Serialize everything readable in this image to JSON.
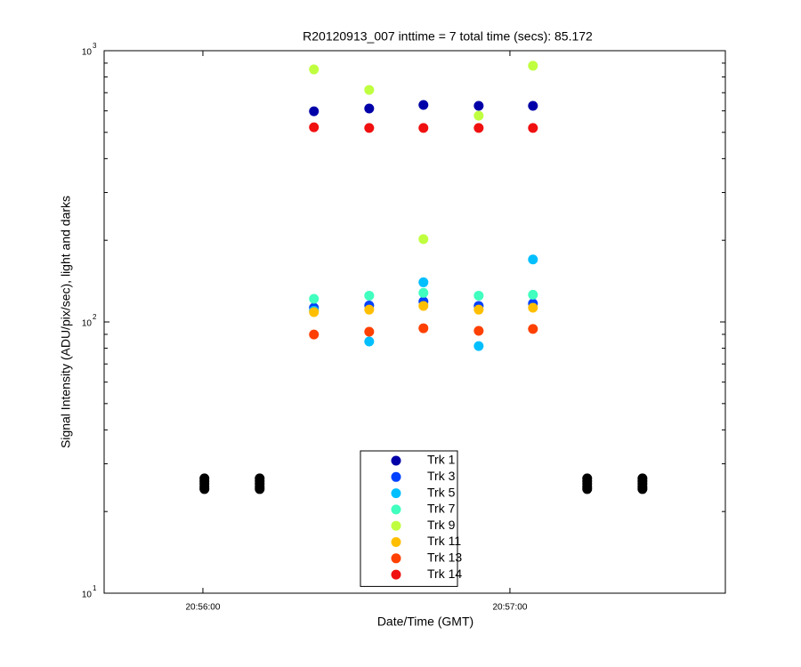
{
  "chart_data": {
    "type": "scatter",
    "title": "R20120913_007 inttime = 7 total time (secs): 85.172",
    "x_label": "Date/Time (GMT)",
    "y_label": "Signal Intensity (ADU/pix/sec), light and darks",
    "log_y": true,
    "xlim": [
      "20:55:40.7",
      "20:57:42.1"
    ],
    "xticks": [
      "20:56:00",
      "20:57:00"
    ],
    "ylim": [
      10,
      1000
    ],
    "yticks": [
      {
        "value": 10,
        "label": "10",
        "exponent": "1"
      },
      {
        "value": 100,
        "label": "10",
        "exponent": "2"
      },
      {
        "value": 1000,
        "label": "10",
        "exponent": "3"
      }
    ],
    "legend_position": "bottom",
    "series": [
      {
        "name": "Trk 1",
        "color": "#0000a8",
        "x": [
          "20:56:21.7",
          "20:56:32.5",
          "20:56:43.1",
          "20:56:53.9",
          "20:57:04.5"
        ],
        "values": [
          598,
          612,
          631,
          626,
          626
        ]
      },
      {
        "name": "Trk 3",
        "color": "#0040ff",
        "x": [
          "20:56:21.7",
          "20:56:32.5",
          "20:56:43.1",
          "20:56:53.9",
          "20:57:04.5"
        ],
        "values": [
          112.8,
          115,
          119,
          114.6,
          117
        ]
      },
      {
        "name": "Trk 5",
        "color": "#00bfff",
        "x": [
          "20:56:21.7",
          "20:56:32.5",
          "20:56:43.1",
          "20:56:53.9",
          "20:57:04.5"
        ],
        "values": [
          110,
          84.7,
          140,
          81.5,
          170
        ]
      },
      {
        "name": "Trk 7",
        "color": "#40ffbf",
        "x": [
          "20:56:21.7",
          "20:56:32.5",
          "20:56:43.1",
          "20:56:53.9",
          "20:57:04.5"
        ],
        "values": [
          121.7,
          125,
          128,
          125,
          126
        ]
      },
      {
        "name": "Trk 9",
        "color": "#bfff40",
        "x": [
          "20:56:21.7",
          "20:56:32.5",
          "20:56:43.1",
          "20:56:53.9",
          "20:57:04.5"
        ],
        "values": [
          853,
          717,
          202,
          576,
          880
        ]
      },
      {
        "name": "Trk 11",
        "color": "#ffbf00",
        "x": [
          "20:56:21.7",
          "20:56:32.5",
          "20:56:43.1",
          "20:56:53.9",
          "20:57:04.5"
        ],
        "values": [
          108.7,
          111,
          114.6,
          111,
          112.8
        ]
      },
      {
        "name": "Trk 13",
        "color": "#ff4000",
        "x": [
          "20:56:21.7",
          "20:56:32.5",
          "20:56:43.1",
          "20:56:53.9",
          "20:57:04.5"
        ],
        "values": [
          89.9,
          92,
          94.8,
          92.7,
          94.2
        ]
      },
      {
        "name": "Trk 14",
        "color": "#f01010",
        "x": [
          "20:56:21.7",
          "20:56:32.5",
          "20:56:43.1",
          "20:56:53.9",
          "20:57:04.5"
        ],
        "values": [
          522,
          519,
          519,
          519,
          519
        ]
      },
      {
        "color": "#000000",
        "x": [
          "20:56:00.3",
          "20:56:00.3",
          "20:56:00.3",
          "20:56:00.3",
          "20:56:00.3",
          "20:56:11.1",
          "20:56:11.1",
          "20:56:11.1",
          "20:56:11.1",
          "20:56:11.1",
          "20:57:15.1",
          "20:57:15.1",
          "20:57:15.1",
          "20:57:15.1",
          "20:57:15.1",
          "20:57:25.9",
          "20:57:25.9",
          "20:57:25.9",
          "20:57:25.9",
          "20:57:25.9"
        ],
        "values": [
          26.5,
          25.9,
          25.3,
          24.7,
          24.2,
          26.5,
          25.9,
          25.3,
          24.7,
          24.2,
          26.5,
          25.9,
          25.3,
          24.7,
          24.2,
          26.5,
          25.9,
          25.3,
          24.7,
          24.2
        ]
      }
    ]
  }
}
